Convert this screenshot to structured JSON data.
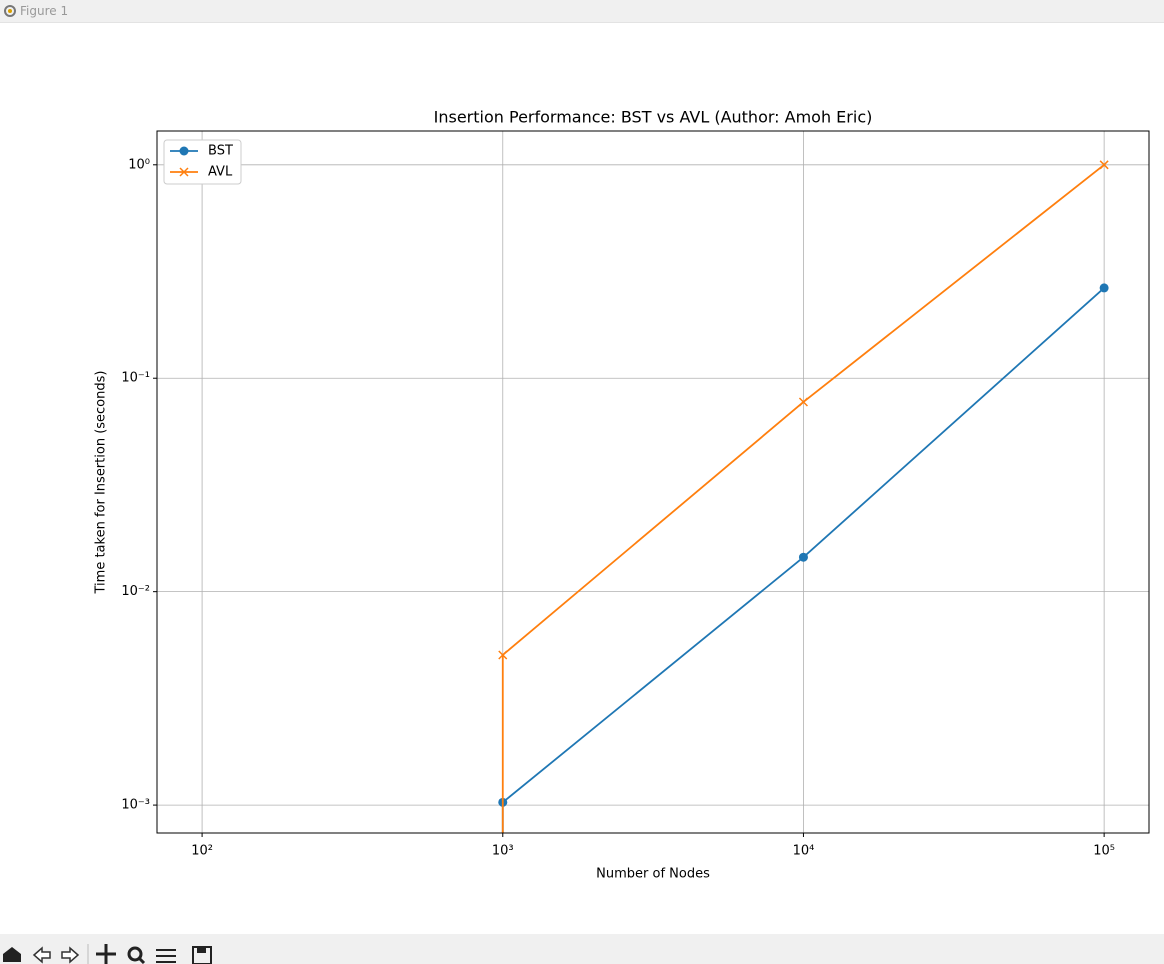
{
  "window": {
    "title": "Figure 1"
  },
  "chart_data": {
    "type": "line",
    "title": "Insertion Performance: BST vs AVL (Author: Amoh Eric)",
    "x_label": "Number of Nodes",
    "y_label": "Time taken for Insertion (seconds)",
    "x": [
      100,
      1000,
      10000,
      100000
    ],
    "series": [
      {
        "name": "BST",
        "color": "#1f77b4",
        "marker": "o",
        "values": [
          0,
          0.00103,
          0.0145,
          0.265
        ]
      },
      {
        "name": "AVL",
        "color": "#ff7f0e",
        "marker": "x",
        "values": [
          0,
          0.00505,
          0.0774,
          1.0
        ]
      }
    ],
    "xscale": "log",
    "yscale": "log",
    "xlim": [
      70.8,
      141000
    ],
    "ylim": [
      0.00074,
      1.44
    ],
    "xticks": [
      {
        "value": 100,
        "label": "10²"
      },
      {
        "value": 1000,
        "label": "10³"
      },
      {
        "value": 10000,
        "label": "10⁴"
      },
      {
        "value": 100000,
        "label": "10⁵"
      }
    ],
    "yticks": [
      {
        "value": 0.001,
        "label": "10⁻³"
      },
      {
        "value": 0.01,
        "label": "10⁻²"
      },
      {
        "value": 0.1,
        "label": "10⁻¹"
      },
      {
        "value": 1,
        "label": "10⁰"
      }
    ],
    "grid": true,
    "legend": "upper left"
  }
}
